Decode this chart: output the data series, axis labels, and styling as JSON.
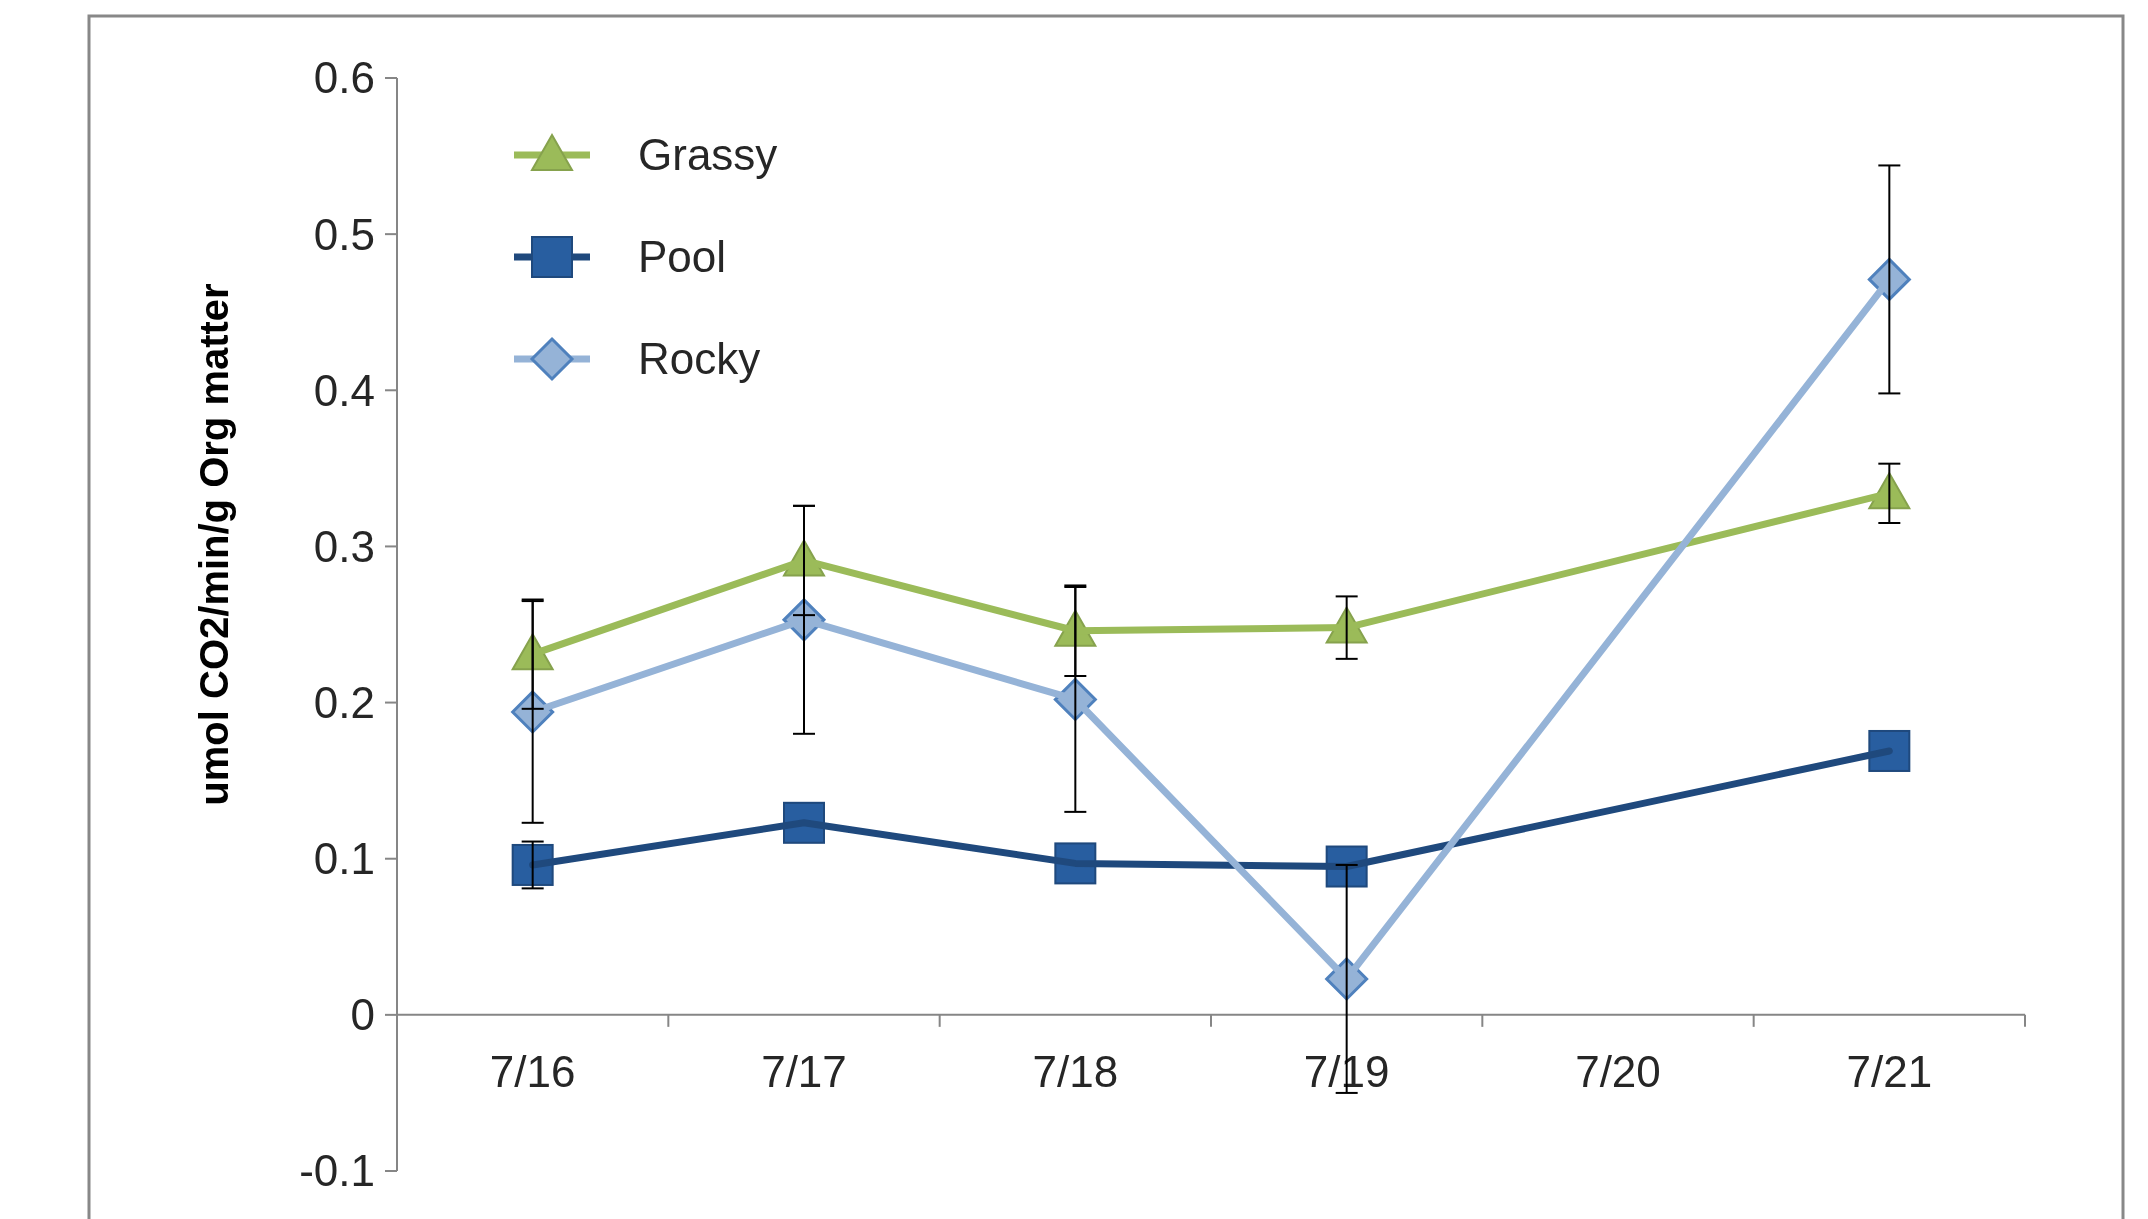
{
  "chart_data": {
    "type": "line",
    "ylabel": "umol CO2/min/g Org matter",
    "categories": [
      "7/16",
      "7/17",
      "7/18",
      "7/19",
      "7/20",
      "7/21"
    ],
    "series": [
      {
        "name": "Grassy",
        "color": "#9bbb59",
        "marker": "triangle",
        "values": [
          0.231,
          0.291,
          0.246,
          0.248,
          null,
          0.334
        ],
        "errors": [
          0.035,
          0.035,
          0.029,
          0.02,
          null,
          0.019
        ]
      },
      {
        "name": "Pool",
        "color": "#1f497d",
        "marker": "square",
        "values": [
          0.096,
          0.123,
          0.097,
          0.095,
          null,
          0.169
        ],
        "errors": [
          0.015,
          null,
          null,
          null,
          null,
          null
        ]
      },
      {
        "name": "Rocky",
        "color": "#95b3d7",
        "marker": "diamond",
        "values": [
          0.194,
          0.253,
          0.202,
          0.023,
          null,
          0.471
        ],
        "errors": [
          0.071,
          0.073,
          0.072,
          0.073,
          null,
          0.073
        ]
      }
    ],
    "ylim": [
      -0.1,
      0.6
    ],
    "yticks": [
      -0.1,
      0,
      0.1,
      0.2,
      0.3,
      0.4,
      0.5,
      0.6
    ],
    "grid": false,
    "legend": "top left",
    "line_style": "solid"
  }
}
